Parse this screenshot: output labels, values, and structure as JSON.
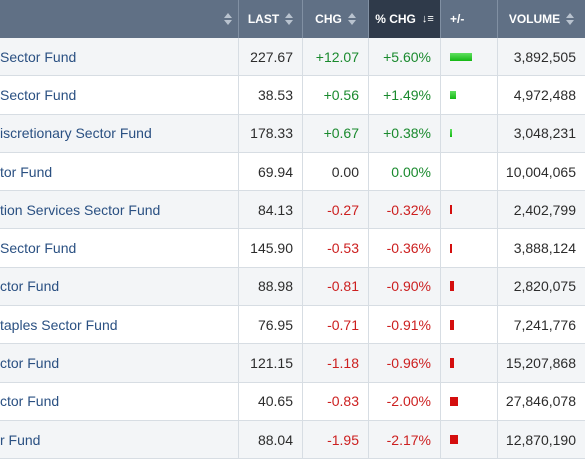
{
  "header": {
    "last": "LAST",
    "chg": "CHG",
    "pct_chg": "% CHG",
    "plus_minus": "+/-",
    "volume": "VOLUME"
  },
  "rows": [
    {
      "name": "Sector Fund",
      "last": "227.67",
      "chg": "+12.07",
      "pct": "+5.60%",
      "volume": "3,892,505",
      "dir": "up",
      "bar_pct": 5.6
    },
    {
      "name": "Sector Fund",
      "last": "38.53",
      "chg": "+0.56",
      "pct": "+1.49%",
      "volume": "4,972,488",
      "dir": "up",
      "bar_pct": 1.49
    },
    {
      "name": "iscretionary Sector Fund",
      "last": "178.33",
      "chg": "+0.67",
      "pct": "+0.38%",
      "volume": "3,048,231",
      "dir": "up",
      "bar_pct": 0.38
    },
    {
      "name": "tor Fund",
      "last": "69.94",
      "chg": "0.00",
      "pct": "0.00%",
      "volume": "10,004,065",
      "dir": "flat",
      "bar_pct": 0
    },
    {
      "name": "tion Services Sector Fund",
      "last": "84.13",
      "chg": "-0.27",
      "pct": "-0.32%",
      "volume": "2,402,799",
      "dir": "down",
      "bar_pct": 0.32
    },
    {
      "name": "Sector Fund",
      "last": "145.90",
      "chg": "-0.53",
      "pct": "-0.36%",
      "volume": "3,888,124",
      "dir": "down",
      "bar_pct": 0.36
    },
    {
      "name": "ctor Fund",
      "last": "88.98",
      "chg": "-0.81",
      "pct": "-0.90%",
      "volume": "2,820,075",
      "dir": "down",
      "bar_pct": 0.9
    },
    {
      "name": "taples Sector Fund",
      "last": "76.95",
      "chg": "-0.71",
      "pct": "-0.91%",
      "volume": "7,241,776",
      "dir": "down",
      "bar_pct": 0.91
    },
    {
      "name": "ctor Fund",
      "last": "121.15",
      "chg": "-1.18",
      "pct": "-0.96%",
      "volume": "15,207,868",
      "dir": "down",
      "bar_pct": 0.96
    },
    {
      "name": "ctor Fund",
      "last": "40.65",
      "chg": "-0.83",
      "pct": "-2.00%",
      "volume": "27,846,078",
      "dir": "down",
      "bar_pct": 2.0
    },
    {
      "name": "r Fund",
      "last": "88.04",
      "chg": "-1.95",
      "pct": "-2.17%",
      "volume": "12,870,190",
      "dir": "down",
      "bar_pct": 2.17
    }
  ],
  "colors": {
    "header_bg": "#607085",
    "active_header_bg": "#2f3a4a",
    "positive": "#1a8a2e",
    "negative": "#cc1f1f",
    "link": "#2a5082"
  }
}
